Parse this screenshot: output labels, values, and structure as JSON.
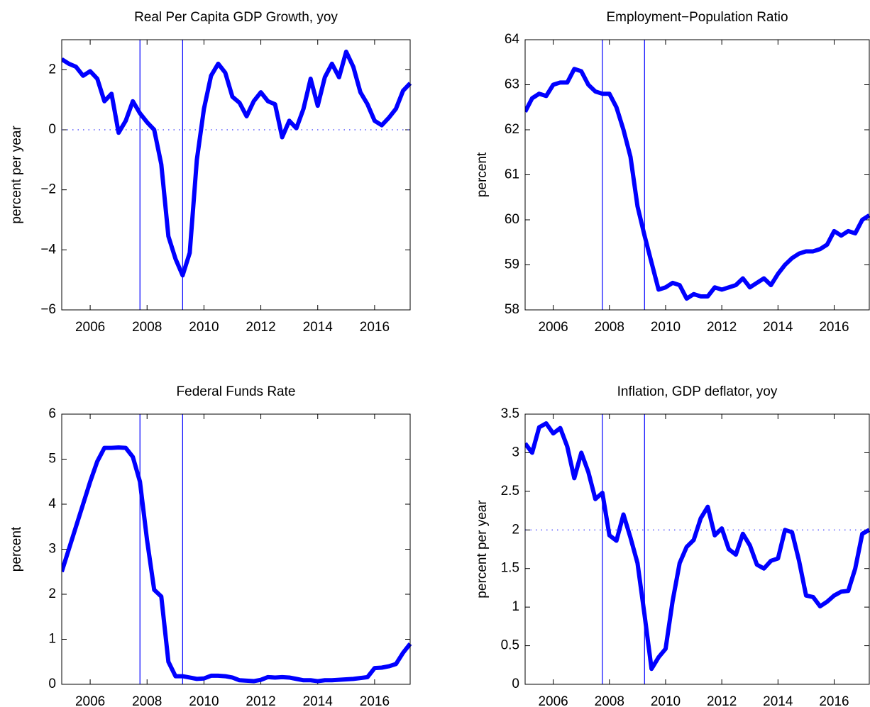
{
  "chart_data": [
    {
      "type": "line",
      "title": "Real Per Capita  GDP Growth, yoy",
      "ylabel": "percent per year",
      "x": [
        2005,
        2005.25,
        2005.5,
        2005.75,
        2006,
        2006.25,
        2006.5,
        2006.75,
        2007,
        2007.25,
        2007.5,
        2007.75,
        2008,
        2008.25,
        2008.5,
        2008.75,
        2009,
        2009.25,
        2009.5,
        2009.75,
        2010,
        2010.25,
        2010.5,
        2010.75,
        2011,
        2011.25,
        2011.5,
        2011.75,
        2012,
        2012.25,
        2012.5,
        2012.75,
        2013,
        2013.25,
        2013.5,
        2013.75,
        2014,
        2014.25,
        2014.5,
        2014.75,
        2015,
        2015.25,
        2015.5,
        2015.75,
        2016,
        2016.25,
        2016.5,
        2016.75,
        2017,
        2017.25
      ],
      "values": [
        2.35,
        2.2,
        2.1,
        1.8,
        1.95,
        1.7,
        0.95,
        1.2,
        -0.1,
        0.3,
        0.95,
        0.55,
        0.25,
        0.0,
        -1.15,
        -3.55,
        -4.3,
        -4.85,
        -4.1,
        -1.0,
        0.7,
        1.8,
        2.2,
        1.9,
        1.1,
        0.9,
        0.45,
        0.95,
        1.25,
        0.95,
        0.85,
        -0.25,
        0.3,
        0.05,
        0.7,
        1.7,
        0.8,
        1.75,
        2.2,
        1.75,
        2.6,
        2.1,
        1.25,
        0.85,
        0.3,
        0.15,
        0.4,
        0.7,
        1.3,
        1.55
      ],
      "color": "#0000ff",
      "xlim": [
        2005,
        2017.25
      ],
      "ylim": [
        -6,
        3
      ],
      "xticks": [
        2006,
        2008,
        2010,
        2012,
        2014,
        2016
      ],
      "yticks": [
        {
          "value": -6,
          "label": "−6"
        },
        {
          "value": -4,
          "label": "−4"
        },
        {
          "value": -2,
          "label": "−2"
        },
        0,
        2
      ],
      "vlines": [
        2007.75,
        2009.25
      ],
      "hline": 0
    },
    {
      "type": "line",
      "title": "Employment−Population Ratio",
      "ylabel": "percent",
      "x": [
        2005,
        2005.25,
        2005.5,
        2005.75,
        2006,
        2006.25,
        2006.5,
        2006.75,
        2007,
        2007.25,
        2007.5,
        2007.75,
        2008,
        2008.25,
        2008.5,
        2008.75,
        2009,
        2009.25,
        2009.5,
        2009.75,
        2010,
        2010.25,
        2010.5,
        2010.75,
        2011,
        2011.25,
        2011.5,
        2011.75,
        2012,
        2012.25,
        2012.5,
        2012.75,
        2013,
        2013.25,
        2013.5,
        2013.75,
        2014,
        2014.25,
        2014.5,
        2014.75,
        2015,
        2015.25,
        2015.5,
        2015.75,
        2016,
        2016.25,
        2016.5,
        2016.75,
        2017,
        2017.25
      ],
      "values": [
        62.4,
        62.7,
        62.8,
        62.75,
        63.0,
        63.05,
        63.05,
        63.35,
        63.3,
        63.0,
        62.85,
        62.8,
        62.8,
        62.5,
        62.0,
        61.4,
        60.3,
        59.65,
        59.05,
        58.45,
        58.5,
        58.6,
        58.55,
        58.25,
        58.35,
        58.3,
        58.3,
        58.5,
        58.45,
        58.5,
        58.55,
        58.7,
        58.5,
        58.6,
        58.7,
        58.55,
        58.8,
        59.0,
        59.15,
        59.25,
        59.3,
        59.3,
        59.35,
        59.45,
        59.75,
        59.65,
        59.75,
        59.7,
        60.0,
        60.1
      ],
      "color": "#0000ff",
      "xlim": [
        2005,
        2017.25
      ],
      "ylim": [
        58,
        64
      ],
      "xticks": [
        2006,
        2008,
        2010,
        2012,
        2014,
        2016
      ],
      "yticks": [
        58,
        59,
        60,
        61,
        62,
        63,
        64
      ],
      "vlines": [
        2007.75,
        2009.25
      ]
    },
    {
      "type": "line",
      "title": "Federal Funds Rate",
      "ylabel": "percent",
      "x": [
        2005,
        2005.25,
        2005.5,
        2005.75,
        2006,
        2006.25,
        2006.5,
        2006.75,
        2007,
        2007.25,
        2007.5,
        2007.75,
        2008,
        2008.25,
        2008.5,
        2008.75,
        2009,
        2009.25,
        2009.5,
        2009.75,
        2010,
        2010.25,
        2010.5,
        2010.75,
        2011,
        2011.25,
        2011.5,
        2011.75,
        2012,
        2012.25,
        2012.5,
        2012.75,
        2013,
        2013.25,
        2013.5,
        2013.75,
        2014,
        2014.25,
        2014.5,
        2014.75,
        2015,
        2015.25,
        2015.5,
        2015.75,
        2016,
        2016.25,
        2016.5,
        2016.75,
        2017,
        2017.25
      ],
      "values": [
        2.5,
        3.0,
        3.5,
        4.0,
        4.5,
        4.95,
        5.25,
        5.25,
        5.26,
        5.25,
        5.05,
        4.5,
        3.2,
        2.1,
        1.95,
        0.5,
        0.18,
        0.18,
        0.15,
        0.12,
        0.13,
        0.19,
        0.19,
        0.18,
        0.15,
        0.09,
        0.08,
        0.07,
        0.1,
        0.16,
        0.15,
        0.16,
        0.15,
        0.12,
        0.09,
        0.09,
        0.07,
        0.09,
        0.09,
        0.1,
        0.11,
        0.12,
        0.14,
        0.16,
        0.36,
        0.37,
        0.4,
        0.45,
        0.7,
        0.9
      ],
      "color": "#0000ff",
      "xlim": [
        2005,
        2017.25
      ],
      "ylim": [
        0,
        6
      ],
      "xticks": [
        2006,
        2008,
        2010,
        2012,
        2014,
        2016
      ],
      "yticks": [
        0,
        1,
        2,
        3,
        4,
        5,
        6
      ],
      "vlines": [
        2007.75,
        2009.25
      ]
    },
    {
      "type": "line",
      "title": "Inflation, GDP deflator, yoy",
      "ylabel": "percent per year",
      "x": [
        2005,
        2005.25,
        2005.5,
        2005.75,
        2006,
        2006.25,
        2006.5,
        2006.75,
        2007,
        2007.25,
        2007.5,
        2007.75,
        2008,
        2008.25,
        2008.5,
        2008.75,
        2009,
        2009.25,
        2009.5,
        2009.75,
        2010,
        2010.25,
        2010.5,
        2010.75,
        2011,
        2011.25,
        2011.5,
        2011.75,
        2012,
        2012.25,
        2012.5,
        2012.75,
        2013,
        2013.25,
        2013.5,
        2013.75,
        2014,
        2014.25,
        2014.5,
        2014.75,
        2015,
        2015.25,
        2015.5,
        2015.75,
        2016,
        2016.25,
        2016.5,
        2016.75,
        2017,
        2017.25
      ],
      "values": [
        3.12,
        3.0,
        3.33,
        3.38,
        3.25,
        3.32,
        3.08,
        2.67,
        3.0,
        2.75,
        2.4,
        2.48,
        1.93,
        1.86,
        2.2,
        1.9,
        1.57,
        0.9,
        0.2,
        0.35,
        0.46,
        1.08,
        1.57,
        1.78,
        1.87,
        2.15,
        2.3,
        1.93,
        2.02,
        1.75,
        1.68,
        1.95,
        1.8,
        1.55,
        1.5,
        1.6,
        1.63,
        2.0,
        1.97,
        1.6,
        1.15,
        1.13,
        1.01,
        1.07,
        1.15,
        1.2,
        1.21,
        1.5,
        1.95,
        2.0
      ],
      "color": "#0000ff",
      "xlim": [
        2005,
        2017.25
      ],
      "ylim": [
        0,
        3.5
      ],
      "xticks": [
        2006,
        2008,
        2010,
        2012,
        2014,
        2016
      ],
      "yticks": [
        0,
        0.5,
        1,
        1.5,
        2,
        2.5,
        3,
        3.5
      ],
      "vlines": [
        2007.75,
        2009.25
      ],
      "hline": 2
    }
  ]
}
